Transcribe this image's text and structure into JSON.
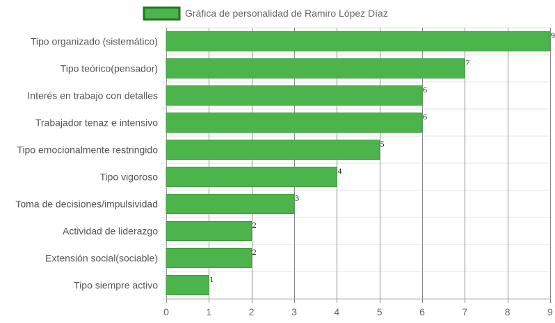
{
  "chart_data": {
    "type": "bar",
    "orientation": "horizontal",
    "title": "",
    "categories": [
      "Tipo organizado (sistemático)",
      "Tipo teórico(pensador)",
      "Interés en trabajo con detalles",
      "Trabajador tenaz e intensivo",
      "Tipo emocionalmente restringido",
      "Tipo vigoroso",
      "Toma de decisiones/impulsividad",
      "Actividad de liderazgo",
      "Extensión social(sociable)",
      "Tipo siempre activo"
    ],
    "series": [
      {
        "name": "Gráfica de personalidad de Ramiro López Díaz",
        "values": [
          9,
          7,
          6,
          6,
          5,
          4,
          3,
          2,
          2,
          1
        ]
      }
    ],
    "data_labels": [
      "9",
      "7",
      "6",
      "6",
      "5",
      "4",
      "3",
      "2",
      "2",
      "1"
    ],
    "xlim": [
      0,
      9
    ],
    "xticks": [
      "0",
      "1",
      "2",
      "3",
      "4",
      "5",
      "6",
      "7",
      "8",
      "9"
    ],
    "xlabel": "",
    "ylabel": "",
    "grid": true,
    "legend_position": "top"
  },
  "colors": {
    "bar_fill": "#4bb44b",
    "bar_border": "#3e9e3e",
    "legend_border": "#1e7a1e",
    "vertical_grid": "#8a8a8a",
    "horizontal_grid": "#e6e6e6"
  }
}
